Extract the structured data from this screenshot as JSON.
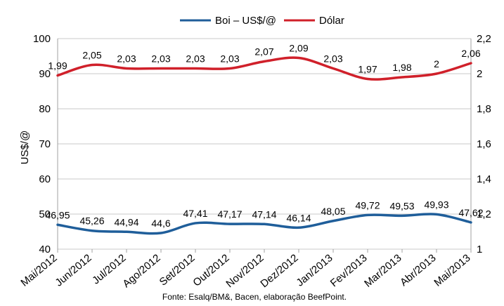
{
  "chart_data": {
    "type": "line",
    "categories": [
      "Mai/2012",
      "Jun/2012",
      "Jul/2012",
      "Ago/2012",
      "Set/2012",
      "Out/2012",
      "Nov/2012",
      "Dez/2012",
      "Jan/2013",
      "Fev/2013",
      "Mar/2013",
      "Abr/2013",
      "Mai/2013"
    ],
    "series": [
      {
        "name": "Boi – US$/@",
        "axis": "left",
        "color": "#1f5e9a",
        "values": [
          46.95,
          45.26,
          44.94,
          44.6,
          47.41,
          47.17,
          47.14,
          46.14,
          48.05,
          49.72,
          49.53,
          49.93,
          47.62
        ],
        "labels": [
          "46,95",
          "45,26",
          "44,94",
          "44,6",
          "47,41",
          "47,17",
          "47,14",
          "46,14",
          "48,05",
          "49,72",
          "49,53",
          "49,93",
          "47,62"
        ]
      },
      {
        "name": "Dólar",
        "axis": "right",
        "color": "#d0202a",
        "values": [
          1.99,
          2.05,
          2.03,
          2.03,
          2.03,
          2.03,
          2.07,
          2.09,
          2.03,
          1.97,
          1.98,
          2.0,
          2.06
        ],
        "labels": [
          "1,99",
          "2,05",
          "2,03",
          "2,03",
          "2,03",
          "2,03",
          "2,07",
          "2,09",
          "2,03",
          "1,97",
          "1,98",
          "2",
          "2,06"
        ]
      }
    ],
    "ylabel": "US$/@",
    "ylim": [
      40,
      100
    ],
    "y_ticks": [
      "40",
      "50",
      "60",
      "70",
      "80",
      "90",
      "100"
    ],
    "y_tick_values": [
      40,
      50,
      60,
      70,
      80,
      90,
      100
    ],
    "y2lim": [
      1,
      2.2
    ],
    "y2_ticks": [
      "1",
      "1,2",
      "1,4",
      "1,6",
      "1,8",
      "2",
      "2,2"
    ],
    "y2_tick_values": [
      1,
      1.2,
      1.4,
      1.6,
      1.8,
      2,
      2.2
    ],
    "grid": true,
    "legend_position": "top-center",
    "source": "Fonte: Esalq/BM&, Bacen, elaboração BeefPoint."
  }
}
